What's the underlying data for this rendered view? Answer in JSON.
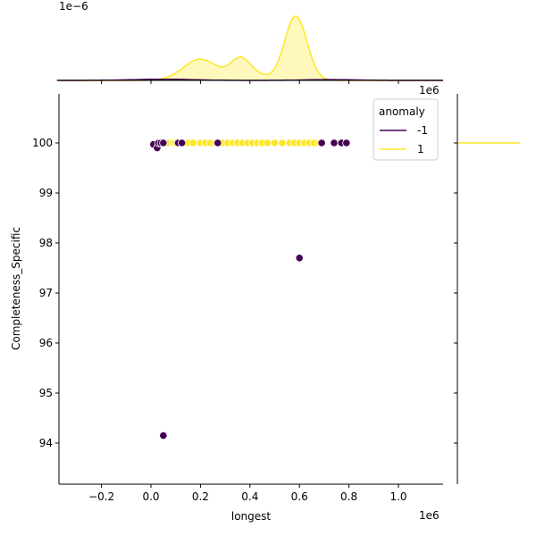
{
  "chart_data": {
    "type": "scatter",
    "kind": "jointplot with KDE marginals",
    "xlabel": "longest",
    "ylabel": "Completeness_Specific",
    "x_offset_label": "1e6",
    "top_marginal_offset_label": "1e−6",
    "xlim": [
      -0.38,
      1.18
    ],
    "ylim": [
      93.2,
      100.9
    ],
    "x_ticks": [
      "−0.2",
      "0.0",
      "0.2",
      "0.4",
      "0.6",
      "0.8",
      "1.0"
    ],
    "x_tick_values": [
      -0.2,
      0.0,
      0.2,
      0.4,
      0.6,
      0.8,
      1.0
    ],
    "y_ticks": [
      "94",
      "95",
      "96",
      "97",
      "98",
      "99",
      "100"
    ],
    "y_tick_values": [
      94,
      95,
      96,
      97,
      98,
      99,
      100
    ],
    "grid": false,
    "legend": {
      "title": "anomaly",
      "placement": "top-right",
      "entries": [
        "-1",
        "1"
      ]
    },
    "series": [
      {
        "name": "-1",
        "color": "#440154",
        "x": [
          0.01,
          0.025,
          0.03,
          0.04,
          0.05,
          0.11,
          0.125,
          0.27,
          0.69,
          0.74,
          0.77,
          0.79,
          0.6,
          0.05
        ],
        "y": [
          99.97,
          99.9,
          100,
          100,
          100,
          100,
          100,
          100,
          100,
          100,
          100,
          100,
          97.7,
          94.15
        ]
      },
      {
        "name": "1",
        "color": "#fde725",
        "x": [
          0.07,
          0.09,
          0.1,
          0.13,
          0.15,
          0.17,
          0.2,
          0.22,
          0.24,
          0.26,
          0.29,
          0.31,
          0.33,
          0.35,
          0.37,
          0.39,
          0.41,
          0.43,
          0.45,
          0.47,
          0.5,
          0.53,
          0.56,
          0.58,
          0.6,
          0.62,
          0.64,
          0.66,
          0.68,
          0.75
        ],
        "y": [
          100,
          100,
          100,
          100,
          100,
          100,
          100,
          100,
          100,
          100,
          100,
          100,
          100,
          100,
          100,
          100,
          100,
          100,
          100,
          100,
          100,
          100,
          100,
          100,
          100,
          100,
          100,
          100,
          100,
          100
        ]
      }
    ]
  }
}
